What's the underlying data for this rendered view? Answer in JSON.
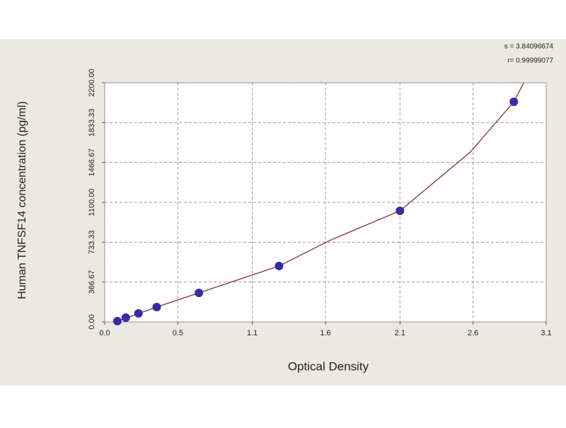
{
  "chart_data": {
    "type": "scatter",
    "xlabel": "Optical Density",
    "ylabel": "Human TNFSF14 concentration (pg/ml)",
    "annotations": [
      "s = 3.84096674",
      "r= 0.99999077"
    ],
    "points": {
      "color": "#3a2aa6",
      "x": [
        0.09,
        0.15,
        0.24,
        0.37,
        0.67,
        1.24,
        2.1,
        2.91
      ],
      "y": [
        7,
        39,
        78,
        137,
        267,
        514,
        1022,
        2025
      ]
    },
    "curve": {
      "color": "#8c2b2b",
      "x": [
        0.09,
        0.37,
        0.67,
        1.24,
        1.6,
        2.1,
        2.6,
        2.91,
        2.98
      ],
      "y": [
        7,
        137,
        267,
        514,
        749,
        1022,
        1562,
        2025,
        2200
      ]
    },
    "xlim": [
      0,
      3.14
    ],
    "xticks": [
      {
        "value": 0,
        "label": "0.0"
      },
      {
        "value": 0.52,
        "label": "0.5"
      },
      {
        "value": 1.05,
        "label": "1.1"
      },
      {
        "value": 1.57,
        "label": "1.6"
      },
      {
        "value": 2.1,
        "label": "2.1"
      },
      {
        "value": 2.62,
        "label": "2.6"
      },
      {
        "value": 3.14,
        "label": "3.1"
      }
    ],
    "ylim": [
      0,
      2200
    ],
    "yticks": [
      {
        "value": 0,
        "label": "0.00"
      },
      {
        "value": 366.67,
        "label": "366.67"
      },
      {
        "value": 733.33,
        "label": "733.33"
      },
      {
        "value": 1100,
        "label": "1100.00"
      },
      {
        "value": 1466.67,
        "label": "1466.67"
      },
      {
        "value": 1833.33,
        "label": "1833.33"
      },
      {
        "value": 2200,
        "label": "2200.00"
      }
    ],
    "grid": true
  }
}
